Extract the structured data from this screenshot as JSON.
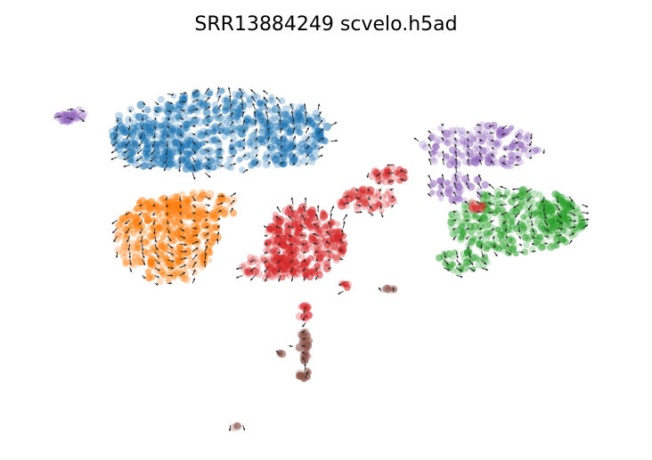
{
  "figure": {
    "title": "SRR13884249 scvelo.h5ad"
  },
  "chart_data": {
    "type": "scatter",
    "title": "SRR13884249 scvelo.h5ad",
    "xlabel": "",
    "ylabel": "",
    "axes_visible": false,
    "grid": false,
    "legend": "none",
    "overlay": "velocity-arrow-grid",
    "xlim": [
      0,
      100
    ],
    "ylim": [
      0,
      100
    ],
    "colors": {
      "blue": "#1f77b4",
      "orange": "#ff7f0e",
      "red": "#d62728",
      "purple": "#9467bd",
      "green": "#2ca02c",
      "brown": "#8c564b",
      "arrow": "#2b2b2b"
    },
    "clusters": [
      {
        "color": "#1f77b4",
        "regions": [
          {
            "cx": 31,
            "cy": 82,
            "rx": 19,
            "ry": 11,
            "n": 520
          },
          {
            "cx": 20,
            "cy": 78,
            "rx": 8,
            "ry": 6,
            "n": 90
          },
          {
            "cx": 44,
            "cy": 80,
            "rx": 6,
            "ry": 8,
            "n": 80
          }
        ]
      },
      {
        "color": "#ff7f0e",
        "regions": [
          {
            "cx": 22,
            "cy": 52,
            "rx": 9,
            "ry": 12,
            "n": 360
          },
          {
            "cx": 27,
            "cy": 61,
            "rx": 7,
            "ry": 4,
            "n": 90
          }
        ]
      },
      {
        "color": "#9467bd",
        "regions": [
          {
            "cx": 5,
            "cy": 86,
            "rx": 2.2,
            "ry": 1.8,
            "n": 40
          },
          {
            "cx": 77,
            "cy": 78,
            "rx": 11,
            "ry": 6,
            "n": 150
          },
          {
            "cx": 73,
            "cy": 66,
            "rx": 5,
            "ry": 4,
            "n": 40
          }
        ]
      },
      {
        "color": "#2ca02c",
        "regions": [
          {
            "cx": 83,
            "cy": 57,
            "rx": 12,
            "ry": 9,
            "n": 300
          },
          {
            "cx": 91,
            "cy": 57,
            "rx": 4,
            "ry": 5,
            "n": 60
          },
          {
            "cx": 74,
            "cy": 46,
            "rx": 4,
            "ry": 3,
            "n": 40
          }
        ]
      },
      {
        "color": "#d62728",
        "regions": [
          {
            "cx": 46,
            "cy": 51,
            "rx": 7,
            "ry": 10,
            "n": 300
          },
          {
            "cx": 40,
            "cy": 44,
            "rx": 5,
            "ry": 3,
            "n": 70
          },
          {
            "cx": 57,
            "cy": 63,
            "rx": 5,
            "ry": 3,
            "n": 60
          },
          {
            "cx": 61,
            "cy": 70,
            "rx": 3,
            "ry": 2.5,
            "n": 30
          },
          {
            "cx": 46,
            "cy": 32,
            "rx": 0.6,
            "ry": 2,
            "n": 15
          },
          {
            "cx": 76,
            "cy": 61,
            "rx": 1.5,
            "ry": 1.2,
            "n": 12
          },
          {
            "cx": 53,
            "cy": 39,
            "rx": 0.7,
            "ry": 0.7,
            "n": 6
          }
        ]
      },
      {
        "color": "#8c564b",
        "regions": [
          {
            "cx": 46,
            "cy": 22,
            "rx": 0.6,
            "ry": 5,
            "n": 40
          },
          {
            "cx": 46,
            "cy": 14,
            "rx": 0.9,
            "ry": 1.2,
            "n": 15
          },
          {
            "cx": 42,
            "cy": 20,
            "rx": 0.5,
            "ry": 0.5,
            "n": 5
          },
          {
            "cx": 61,
            "cy": 38,
            "rx": 0.9,
            "ry": 0.6,
            "n": 8
          },
          {
            "cx": 34,
            "cy": 0,
            "rx": 0.4,
            "ry": 0.4,
            "n": 5
          }
        ]
      }
    ]
  }
}
